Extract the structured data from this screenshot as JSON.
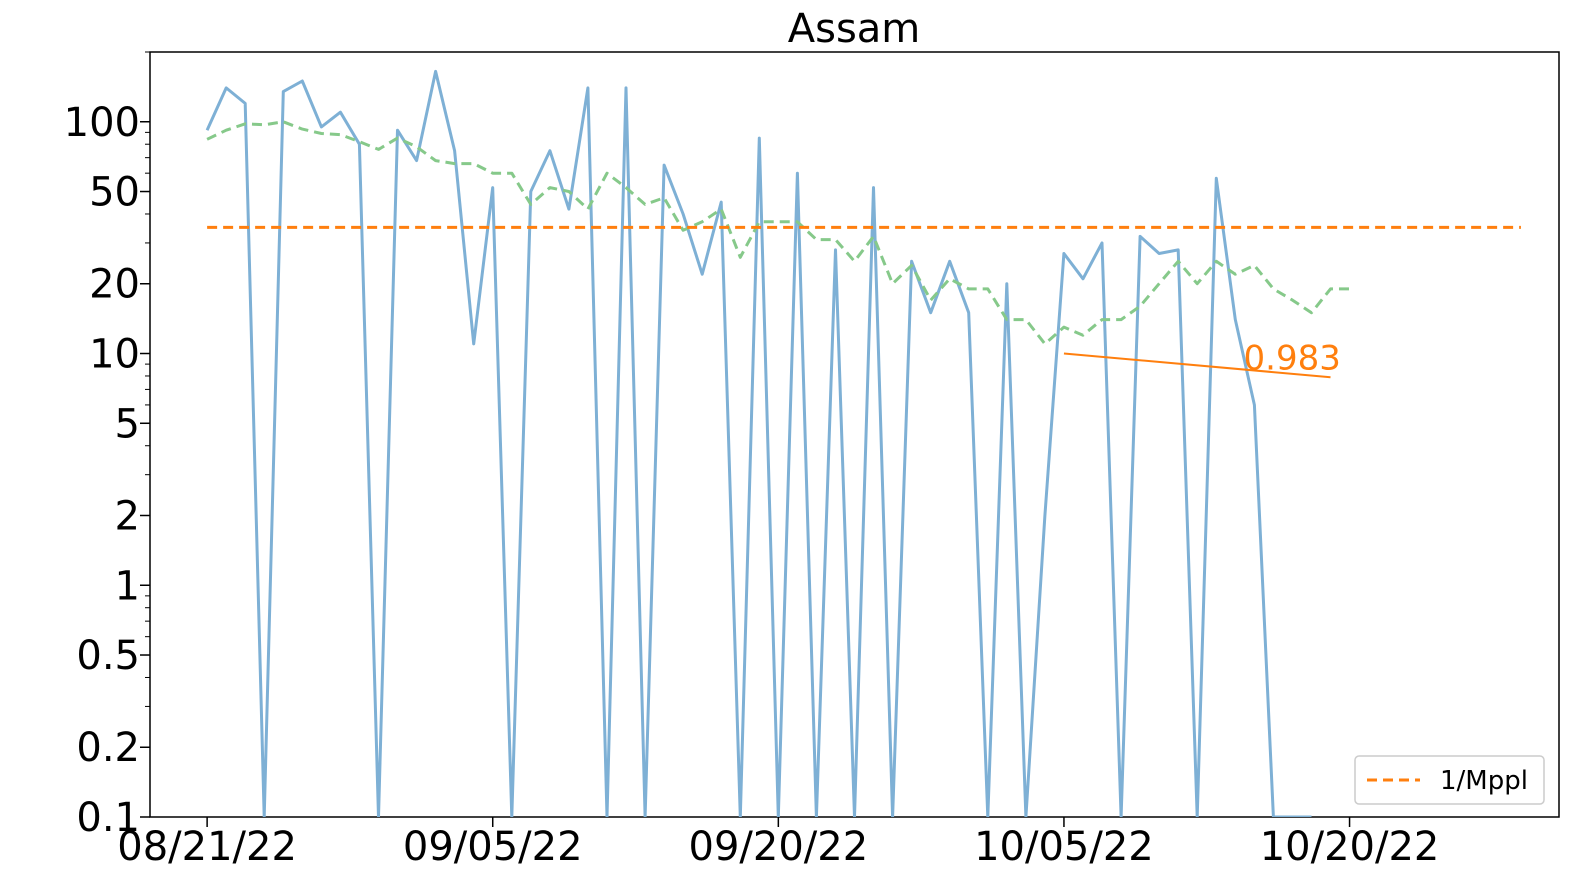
{
  "chart_data": {
    "type": "line",
    "title": "Assam",
    "xlabel": "",
    "ylabel": "",
    "y_scale": "log",
    "ylim": [
      0.1,
      200
    ],
    "xlim": [
      "2022-08-18",
      "2022-10-31"
    ],
    "x_ticks": [
      "2022-08-21",
      "2022-09-05",
      "2022-09-20",
      "2022-10-05",
      "2022-10-20"
    ],
    "x_tick_labels": [
      "08/21/22",
      "09/05/22",
      "09/20/22",
      "10/05/22",
      "10/20/22"
    ],
    "y_ticks": [
      0.1,
      0.2,
      0.5,
      1,
      2,
      5,
      10,
      20,
      50,
      100
    ],
    "y_tick_labels": [
      "0.1",
      "0.2",
      "0.5",
      "1",
      "2",
      "5",
      "10",
      "20",
      "50",
      "100"
    ],
    "grid": false,
    "legend": {
      "position": "bottom-right",
      "entries": [
        "1/Mppl"
      ]
    },
    "colors": {
      "daily": "#7eb0d5",
      "smoothed": "#86c98a",
      "reference": "#ff7f0e",
      "fit": "#ff7f0e"
    },
    "series": [
      {
        "style": "solid",
        "x": [
          "2022-08-21",
          "2022-08-22",
          "2022-08-23",
          "2022-08-24",
          "2022-08-25",
          "2022-08-26",
          "2022-08-27",
          "2022-08-28",
          "2022-08-29",
          "2022-08-30",
          "2022-08-31",
          "2022-09-01",
          "2022-09-02",
          "2022-09-03",
          "2022-09-04",
          "2022-09-05",
          "2022-09-06",
          "2022-09-07",
          "2022-09-08",
          "2022-09-09",
          "2022-09-10",
          "2022-09-11",
          "2022-09-12",
          "2022-09-13",
          "2022-09-14",
          "2022-09-15",
          "2022-09-16",
          "2022-09-17",
          "2022-09-18",
          "2022-09-19",
          "2022-09-20",
          "2022-09-21",
          "2022-09-22",
          "2022-09-23",
          "2022-09-24",
          "2022-09-25",
          "2022-09-26",
          "2022-09-27",
          "2022-09-28",
          "2022-09-29",
          "2022-09-30",
          "2022-10-01",
          "2022-10-02",
          "2022-10-03",
          "2022-10-04",
          "2022-10-05",
          "2022-10-06",
          "2022-10-07",
          "2022-10-08",
          "2022-10-09",
          "2022-10-10",
          "2022-10-11",
          "2022-10-12",
          "2022-10-13",
          "2022-10-14",
          "2022-10-15",
          "2022-10-16",
          "2022-10-17",
          "2022-10-18"
        ],
        "y": [
          92,
          140,
          120,
          0,
          135,
          150,
          95,
          110,
          80,
          0,
          92,
          68,
          165,
          75,
          11,
          52,
          0,
          50,
          75,
          42,
          140,
          0,
          140,
          0,
          65,
          40,
          22,
          45,
          0,
          85,
          0,
          60,
          0,
          28,
          0,
          52,
          0,
          25,
          15,
          25,
          15,
          0,
          20,
          0,
          2,
          27,
          21,
          30,
          0,
          32,
          27,
          28,
          0,
          57,
          14,
          6,
          0,
          0,
          0
        ]
      },
      {
        "style": "dashed",
        "x": [
          "2022-08-21",
          "2022-08-22",
          "2022-08-23",
          "2022-08-24",
          "2022-08-25",
          "2022-08-26",
          "2022-08-27",
          "2022-08-28",
          "2022-08-29",
          "2022-08-30",
          "2022-08-31",
          "2022-09-01",
          "2022-09-02",
          "2022-09-03",
          "2022-09-04",
          "2022-09-05",
          "2022-09-06",
          "2022-09-07",
          "2022-09-08",
          "2022-09-09",
          "2022-09-10",
          "2022-09-11",
          "2022-09-12",
          "2022-09-13",
          "2022-09-14",
          "2022-09-15",
          "2022-09-16",
          "2022-09-17",
          "2022-09-18",
          "2022-09-19",
          "2022-09-20",
          "2022-09-21",
          "2022-09-22",
          "2022-09-23",
          "2022-09-24",
          "2022-09-25",
          "2022-09-26",
          "2022-09-27",
          "2022-09-28",
          "2022-09-29",
          "2022-09-30",
          "2022-10-01",
          "2022-10-02",
          "2022-10-03",
          "2022-10-04",
          "2022-10-05",
          "2022-10-06",
          "2022-10-07",
          "2022-10-08",
          "2022-10-09",
          "2022-10-10",
          "2022-10-11",
          "2022-10-12",
          "2022-10-13",
          "2022-10-14",
          "2022-10-15",
          "2022-10-16",
          "2022-10-17",
          "2022-10-18",
          "2022-10-19",
          "2022-10-20"
        ],
        "y": [
          84,
          92,
          98,
          97,
          100,
          93,
          89,
          88,
          82,
          76,
          85,
          78,
          68,
          66,
          66,
          60,
          60,
          44,
          52,
          50,
          42,
          60,
          52,
          44,
          47,
          34,
          37,
          42,
          26,
          37,
          37,
          37,
          31,
          31,
          25,
          32,
          20,
          24,
          17,
          21,
          19,
          19,
          14,
          14,
          11,
          13,
          12,
          14,
          14,
          16,
          20,
          25,
          20,
          25,
          22,
          24,
          19,
          17,
          15,
          19,
          19
        ]
      }
    ],
    "reference_line": {
      "label": "1/Mppl",
      "y": 35,
      "x_start": "2022-08-21",
      "x_end": "2022-10-29",
      "style": "dashed"
    },
    "fit_line": {
      "x_start": "2022-10-05",
      "x_end": "2022-10-19",
      "y_start": 10,
      "y_end": 7.9,
      "label": "0.983"
    }
  }
}
